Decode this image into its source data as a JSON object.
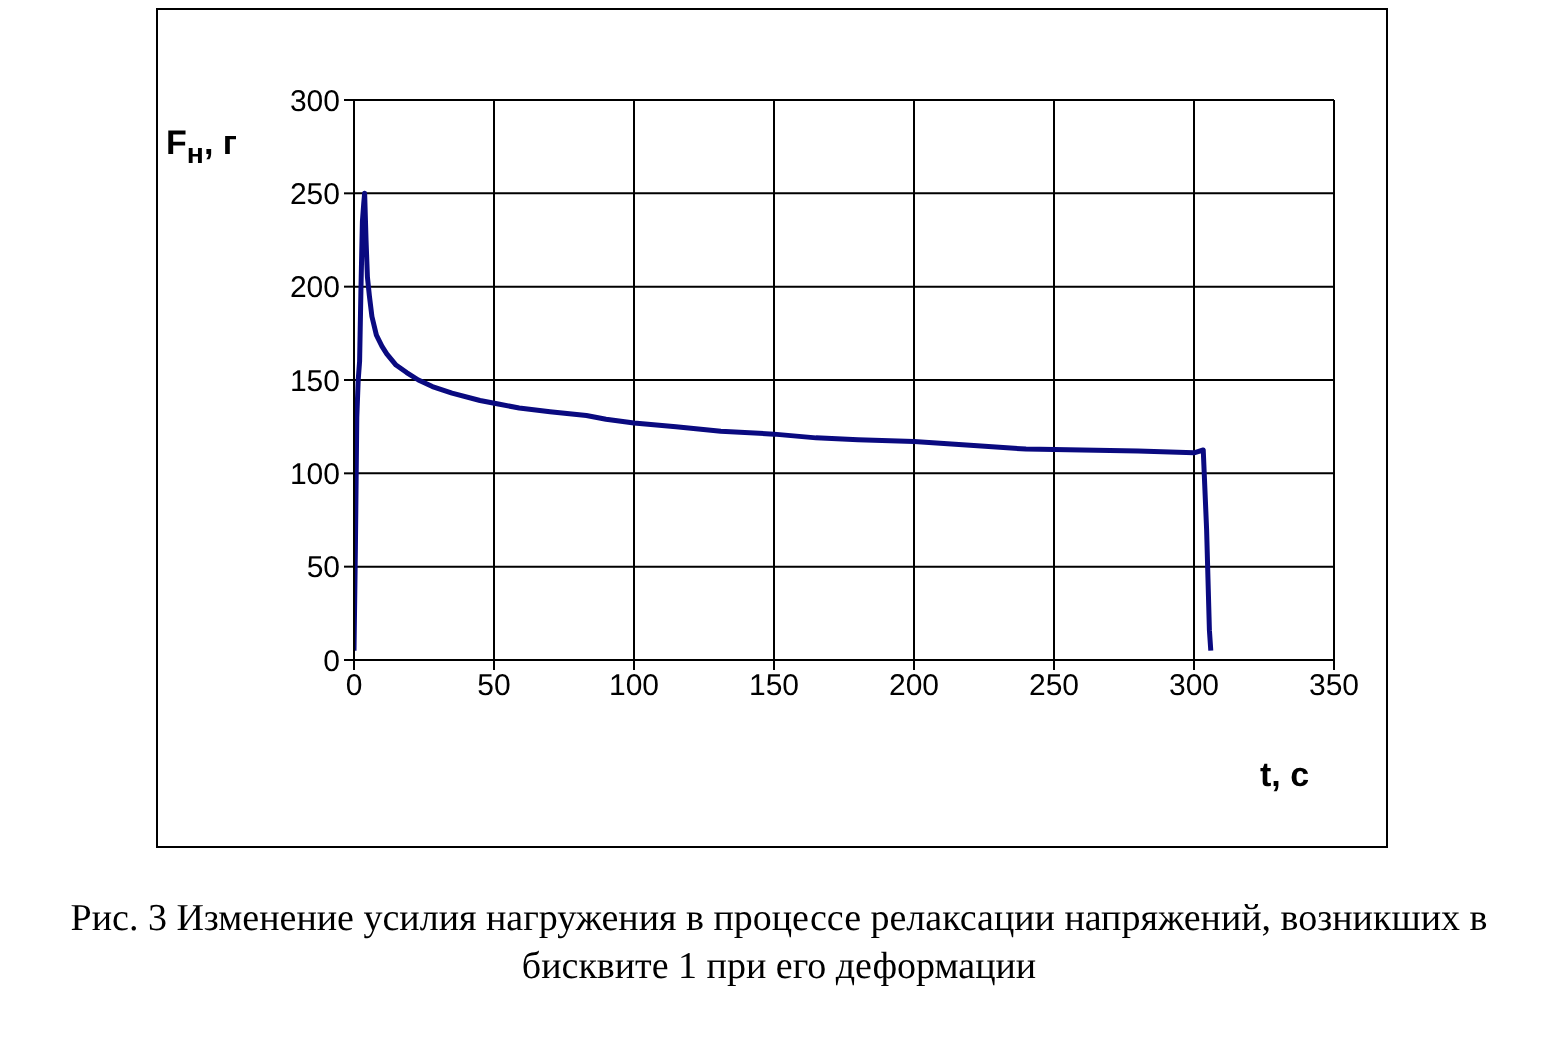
{
  "chart_data": {
    "type": "line",
    "xlabel": "t, с",
    "ylabel": "F$_{н}$, г",
    "annotations": [
      "Рис. 3  Изменение усилия нагружения в процессе релаксации напряжений, возникших в бисквите 1 при его деформации"
    ],
    "x": [
      0,
      0.5,
      1,
      1.5,
      2,
      2.5,
      3,
      3.5,
      3.8,
      4.3,
      4.8,
      5.5,
      6.4,
      8,
      10,
      11.7,
      15,
      18.8,
      23,
      28,
      35,
      45,
      52,
      59,
      70,
      83,
      90,
      100,
      115,
      131,
      150,
      165,
      180,
      200,
      220,
      240,
      260,
      280,
      300,
      303.3,
      304.5,
      305.5,
      306
    ],
    "series": [
      {
        "color": "#0a0a80",
        "values": [
          5,
          60,
          130,
          150,
          160,
          200,
          235,
          245,
          250,
          225,
          205,
          195,
          184,
          174,
          168,
          164,
          158,
          154,
          150,
          146.5,
          143,
          139,
          137,
          135,
          133,
          131,
          129,
          127,
          125,
          122.5,
          121,
          119,
          118,
          117,
          115,
          113,
          112.5,
          112,
          111,
          112.5,
          70,
          16,
          5
        ]
      }
    ],
    "xlim": [
      0,
      350
    ],
    "xticks": [
      0,
      50,
      100,
      150,
      200,
      250,
      300,
      350
    ],
    "ylim": [
      0,
      300
    ],
    "yticks": [
      0,
      50,
      100,
      150,
      200,
      250,
      300
    ],
    "grid": true,
    "legend": false,
    "marker": "none",
    "line_style": "solid"
  }
}
